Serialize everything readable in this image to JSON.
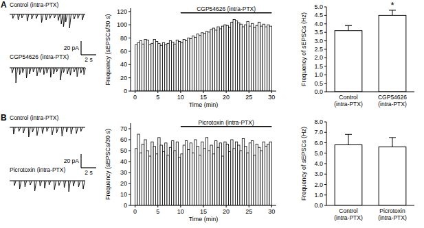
{
  "chart_data": [
    {
      "type": "trace",
      "panel": "A",
      "color": "#000000",
      "xlim": [
        0,
        10
      ],
      "ylim": [
        -30,
        5
      ],
      "tick_labels": false,
      "scale_bar": {
        "x": 2,
        "x_label": "2 s",
        "y": 20,
        "y_label": "20 pA"
      },
      "series": [
        {
          "name": "Control (intra-PTX)",
          "x": [
            0.4,
            1.1,
            1.6,
            2.3,
            2.9,
            3.5,
            4.2,
            4.8,
            5.3,
            5.9,
            6.4,
            6.8,
            7.1,
            7.4,
            7.9,
            8.5,
            9.0,
            9.6
          ],
          "values": [
            -6,
            -8,
            -5,
            -10,
            -7,
            -6,
            -12,
            -8,
            -6,
            -5,
            -9,
            -14,
            -18,
            -11,
            -20,
            -7,
            -6,
            -8
          ]
        },
        {
          "name": "CGP54626 (intra-PTX)",
          "x": [
            0.3,
            0.8,
            1.3,
            1.7,
            2.2,
            2.6,
            3.1,
            3.6,
            4.0,
            4.5,
            4.9,
            5.4,
            5.8,
            6.2,
            6.7,
            7.1,
            7.6,
            8.0,
            8.5,
            8.9,
            9.4,
            9.8
          ],
          "values": [
            -8,
            -22,
            -10,
            -7,
            -15,
            -9,
            -6,
            -12,
            -7,
            -10,
            -8,
            -14,
            -9,
            -6,
            -18,
            -7,
            -9,
            -11,
            -6,
            -13,
            -8,
            -10
          ]
        }
      ]
    },
    {
      "type": "histogram",
      "color": "#ffffff",
      "x_label": "Time (min)",
      "y_label": "Frequency (sEPSCs/30 s)",
      "xlim": [
        -1,
        31
      ],
      "xticks": [
        0,
        5,
        10,
        15,
        20,
        25,
        30
      ],
      "ylim": [
        0,
        125
      ],
      "yticks": [
        0,
        20,
        40,
        60,
        80,
        100,
        120
      ],
      "annotations": [
        {
          "text": "CGP54626 (intra-PTX)",
          "x": [
            10,
            30
          ],
          "y": 118
        }
      ],
      "bins": [
        0,
        0.5,
        1,
        1.5,
        2,
        2.5,
        3,
        3.5,
        4,
        4.5,
        5,
        5.5,
        6,
        6.5,
        7,
        7.5,
        8,
        8.5,
        9,
        9.5,
        10,
        10.5,
        11,
        11.5,
        12,
        12.5,
        13,
        13.5,
        14,
        14.5,
        15,
        15.5,
        16,
        16.5,
        17,
        17.5,
        18,
        18.5,
        19,
        19.5,
        20,
        20.5,
        21,
        21.5,
        22,
        22.5,
        23,
        23.5,
        24,
        24.5,
        25,
        25.5,
        26,
        26.5,
        27,
        27.5,
        28,
        28.5,
        29,
        29.5,
        30
      ],
      "values": [
        70,
        73,
        76,
        71,
        78,
        77,
        70,
        72,
        78,
        75,
        72,
        69,
        73,
        70,
        72,
        76,
        74,
        71,
        77,
        75,
        73,
        78,
        76,
        80,
        79,
        83,
        81,
        86,
        84,
        88,
        87,
        90,
        89,
        93,
        95,
        92,
        97,
        94,
        98,
        100,
        99,
        96,
        104,
        108,
        106,
        103,
        101,
        97,
        100,
        105,
        98,
        102,
        96,
        99,
        104,
        98,
        101,
        97,
        100,
        98
      ]
    },
    {
      "type": "bar",
      "color": "#ffffff",
      "y_label": "Frequency of sEPSCs (Hz)",
      "categories": [
        "Control (intra-PTX)",
        "CGP54626 (intra-PTX)"
      ],
      "values": [
        3.6,
        4.5
      ],
      "errors": [
        0.3,
        0.3
      ],
      "annotations": [
        {
          "text": "*",
          "category": "CGP54626 (intra-PTX)"
        }
      ],
      "ylim": [
        0,
        5
      ],
      "yticks": [
        {
          "value": 0,
          "label": "0.0"
        },
        0.5,
        {
          "value": 1,
          "label": "1.0"
        },
        1.5,
        {
          "value": 2,
          "label": "2.0"
        },
        2.5,
        {
          "value": 3,
          "label": "3.0"
        },
        3.5,
        {
          "value": 4,
          "label": "4.0"
        },
        4.5,
        {
          "value": 5,
          "label": "5.0"
        }
      ]
    },
    {
      "type": "trace",
      "panel": "B",
      "color": "#000000",
      "xlim": [
        0,
        10
      ],
      "ylim": [
        -30,
        5
      ],
      "tick_labels": false,
      "scale_bar": {
        "x": 2,
        "x_label": "2 s",
        "y": 20,
        "y_label": "20 pA"
      },
      "series": [
        {
          "name": "Control (intra-PTX)",
          "x": [
            0.5,
            1.2,
            1.8,
            2.5,
            3.0,
            3.6,
            4.3,
            4.9,
            5.6,
            6.2,
            6.9,
            7.5,
            8.1,
            8.8,
            9.4
          ],
          "values": [
            -10,
            -6,
            -8,
            -14,
            -7,
            -12,
            -9,
            -6,
            -11,
            -8,
            -13,
            -7,
            -10,
            -9,
            -6
          ]
        },
        {
          "name": "Picrotoxin (intra-PTX)",
          "x": [
            0.6,
            1.3,
            2.0,
            2.7,
            3.3,
            4.0,
            4.6,
            5.2,
            5.9,
            6.5,
            7.2,
            7.8,
            8.4,
            9.1,
            9.7
          ],
          "values": [
            -7,
            -12,
            -9,
            -6,
            -15,
            -8,
            -11,
            -6,
            -13,
            -7,
            -10,
            -16,
            -8,
            -9,
            -12
          ]
        }
      ]
    },
    {
      "type": "histogram",
      "color": "#ffffff",
      "x_label": "Time (min)",
      "y_label": "Frequency (sEPSCs/30 s)",
      "xlim": [
        -1,
        31
      ],
      "xticks": [
        0,
        5,
        10,
        15,
        20,
        25,
        30
      ],
      "ylim": [
        0,
        75
      ],
      "yticks": [
        0,
        10,
        20,
        30,
        40,
        50,
        60,
        70
      ],
      "annotations": [
        {
          "text": "Picrotoxin (intra-PTX)",
          "x": [
            10,
            30
          ],
          "y": 72
        }
      ],
      "bins": [
        0,
        0.5,
        1,
        1.5,
        2,
        2.5,
        3,
        3.5,
        4,
        4.5,
        5,
        5.5,
        6,
        6.5,
        7,
        7.5,
        8,
        8.5,
        9,
        9.5,
        10,
        10.5,
        11,
        11.5,
        12,
        12.5,
        13,
        13.5,
        14,
        14.5,
        15,
        15.5,
        16,
        16.5,
        17,
        17.5,
        18,
        18.5,
        19,
        19.5,
        20,
        20.5,
        21,
        21.5,
        22,
        22.5,
        23,
        23.5,
        24,
        24.5,
        25,
        25.5,
        26,
        26.5,
        27,
        27.5,
        28,
        28.5,
        29,
        29.5,
        30
      ],
      "values": [
        52,
        65,
        48,
        56,
        60,
        50,
        45,
        58,
        54,
        47,
        62,
        55,
        49,
        57,
        46,
        53,
        59,
        50,
        58,
        44,
        47,
        55,
        59,
        51,
        57,
        48,
        60,
        54,
        46,
        58,
        52,
        62,
        50,
        55,
        47,
        59,
        53,
        57,
        45,
        58,
        56,
        49,
        60,
        52,
        58,
        55,
        50,
        61,
        54,
        48,
        57,
        59,
        46,
        56,
        53,
        50,
        58,
        54,
        56,
        58
      ]
    },
    {
      "type": "bar",
      "color": "#ffffff",
      "y_label": "Frequency of sEPSCs (Hz)",
      "categories": [
        "Control (intra-PTX)",
        "Picrotoxin (intra-PTX)"
      ],
      "values": [
        5.8,
        5.6
      ],
      "errors": [
        1.0,
        0.9
      ],
      "ylim": [
        0,
        8
      ],
      "yticks": [
        {
          "value": 0,
          "label": "0.0"
        },
        {
          "value": 1,
          "label": "1.0"
        },
        {
          "value": 2,
          "label": "2.0"
        },
        {
          "value": 3,
          "label": "3.0"
        },
        {
          "value": 4,
          "label": "4.0"
        },
        {
          "value": 5,
          "label": "5.0"
        },
        {
          "value": 6,
          "label": "6.0"
        },
        {
          "value": 7,
          "label": "7.0"
        },
        {
          "value": 8,
          "label": "8.0"
        }
      ]
    }
  ]
}
